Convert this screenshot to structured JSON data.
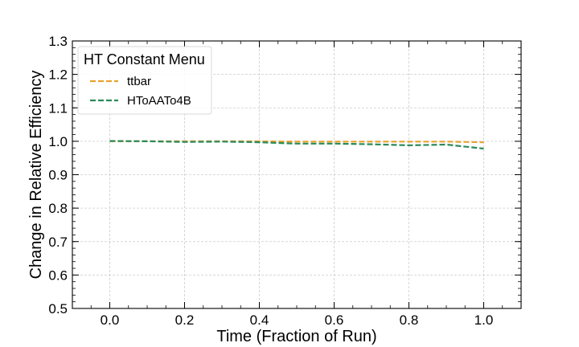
{
  "chart_data": {
    "type": "line",
    "title": "",
    "xlabel": "Time (Fraction of Run)",
    "ylabel": "Change in Relative Efficiency",
    "xlim": [
      -0.1,
      1.1
    ],
    "ylim": [
      0.5,
      1.3
    ],
    "xticks": [
      0.0,
      0.2,
      0.4,
      0.6,
      0.8,
      1.0
    ],
    "xtick_labels": [
      "0.0",
      "0.2",
      "0.4",
      "0.6",
      "0.8",
      "1.0"
    ],
    "yticks": [
      0.5,
      0.6,
      0.7,
      0.8,
      0.9,
      1.0,
      1.1,
      1.2,
      1.3
    ],
    "ytick_labels": [
      "0.5",
      "0.6",
      "0.7",
      "0.8",
      "0.9",
      "1.0",
      "1.1",
      "1.2",
      "1.3"
    ],
    "grid": true,
    "legend": {
      "title": "HT Constant Menu",
      "placement": "top-left"
    },
    "x": [
      0.0,
      0.1,
      0.2,
      0.3,
      0.4,
      0.5,
      0.6,
      0.7,
      0.8,
      0.9,
      1.0
    ],
    "series": [
      {
        "name": "ttbar",
        "color": "#e8a32e",
        "style": "dashed",
        "values": [
          1.0,
          1.0,
          1.0,
          1.0,
          1.0,
          0.999,
          0.999,
          0.999,
          0.999,
          0.999,
          0.997
        ]
      },
      {
        "name": "HToAATo4B",
        "color": "#2a8a58",
        "style": "dashed",
        "values": [
          1.001,
          1.0,
          0.998,
          0.999,
          0.997,
          0.993,
          0.993,
          0.991,
          0.988,
          0.99,
          0.978
        ]
      }
    ]
  }
}
